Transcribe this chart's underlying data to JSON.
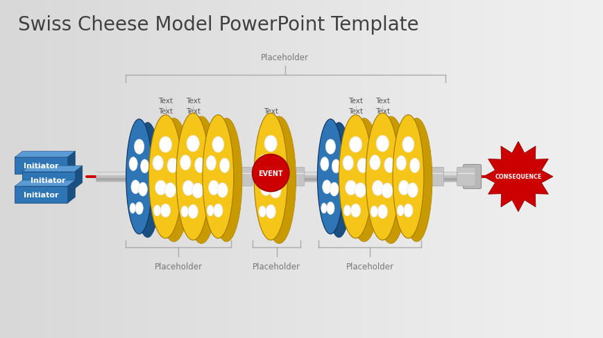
{
  "title": "Swiss Cheese Model PowerPoint Template",
  "title_fontsize": 20,
  "title_color": "#404040",
  "background_left": "#ffffff",
  "background_right": "#d8d8d8",
  "initiators": [
    "Initiator",
    "Initiator",
    "Initiator"
  ],
  "initiator_color": "#2E75B6",
  "initiator_dark": "#1a4f82",
  "initiator_light": "#5b9bd5",
  "event_label": "EVENT",
  "event_color": "#CC0000",
  "consequence_label": "CONSEQUENCE",
  "consequence_color": "#CC0000",
  "top_placeholder": "Placeholder",
  "bottom_placeholders": [
    "Placeholder",
    "Placeholder",
    "Placeholder"
  ],
  "cheese_yellow": "#F5C518",
  "cheese_yellow_side": "#C89A00",
  "cheese_yellow_edge": "#a07800",
  "cheese_blue": "#2E75B6",
  "cheese_blue_side": "#1a4f82",
  "cheese_blue_edge": "#0f3060",
  "axle_color": "#C0C0C0",
  "axle_dark": "#909090",
  "bracket_color": "#aaaaaa",
  "label_color": "#777777",
  "line_color": "#CC0000",
  "text_label_color": "#555555",
  "watermark_color": "#e8e8e8"
}
